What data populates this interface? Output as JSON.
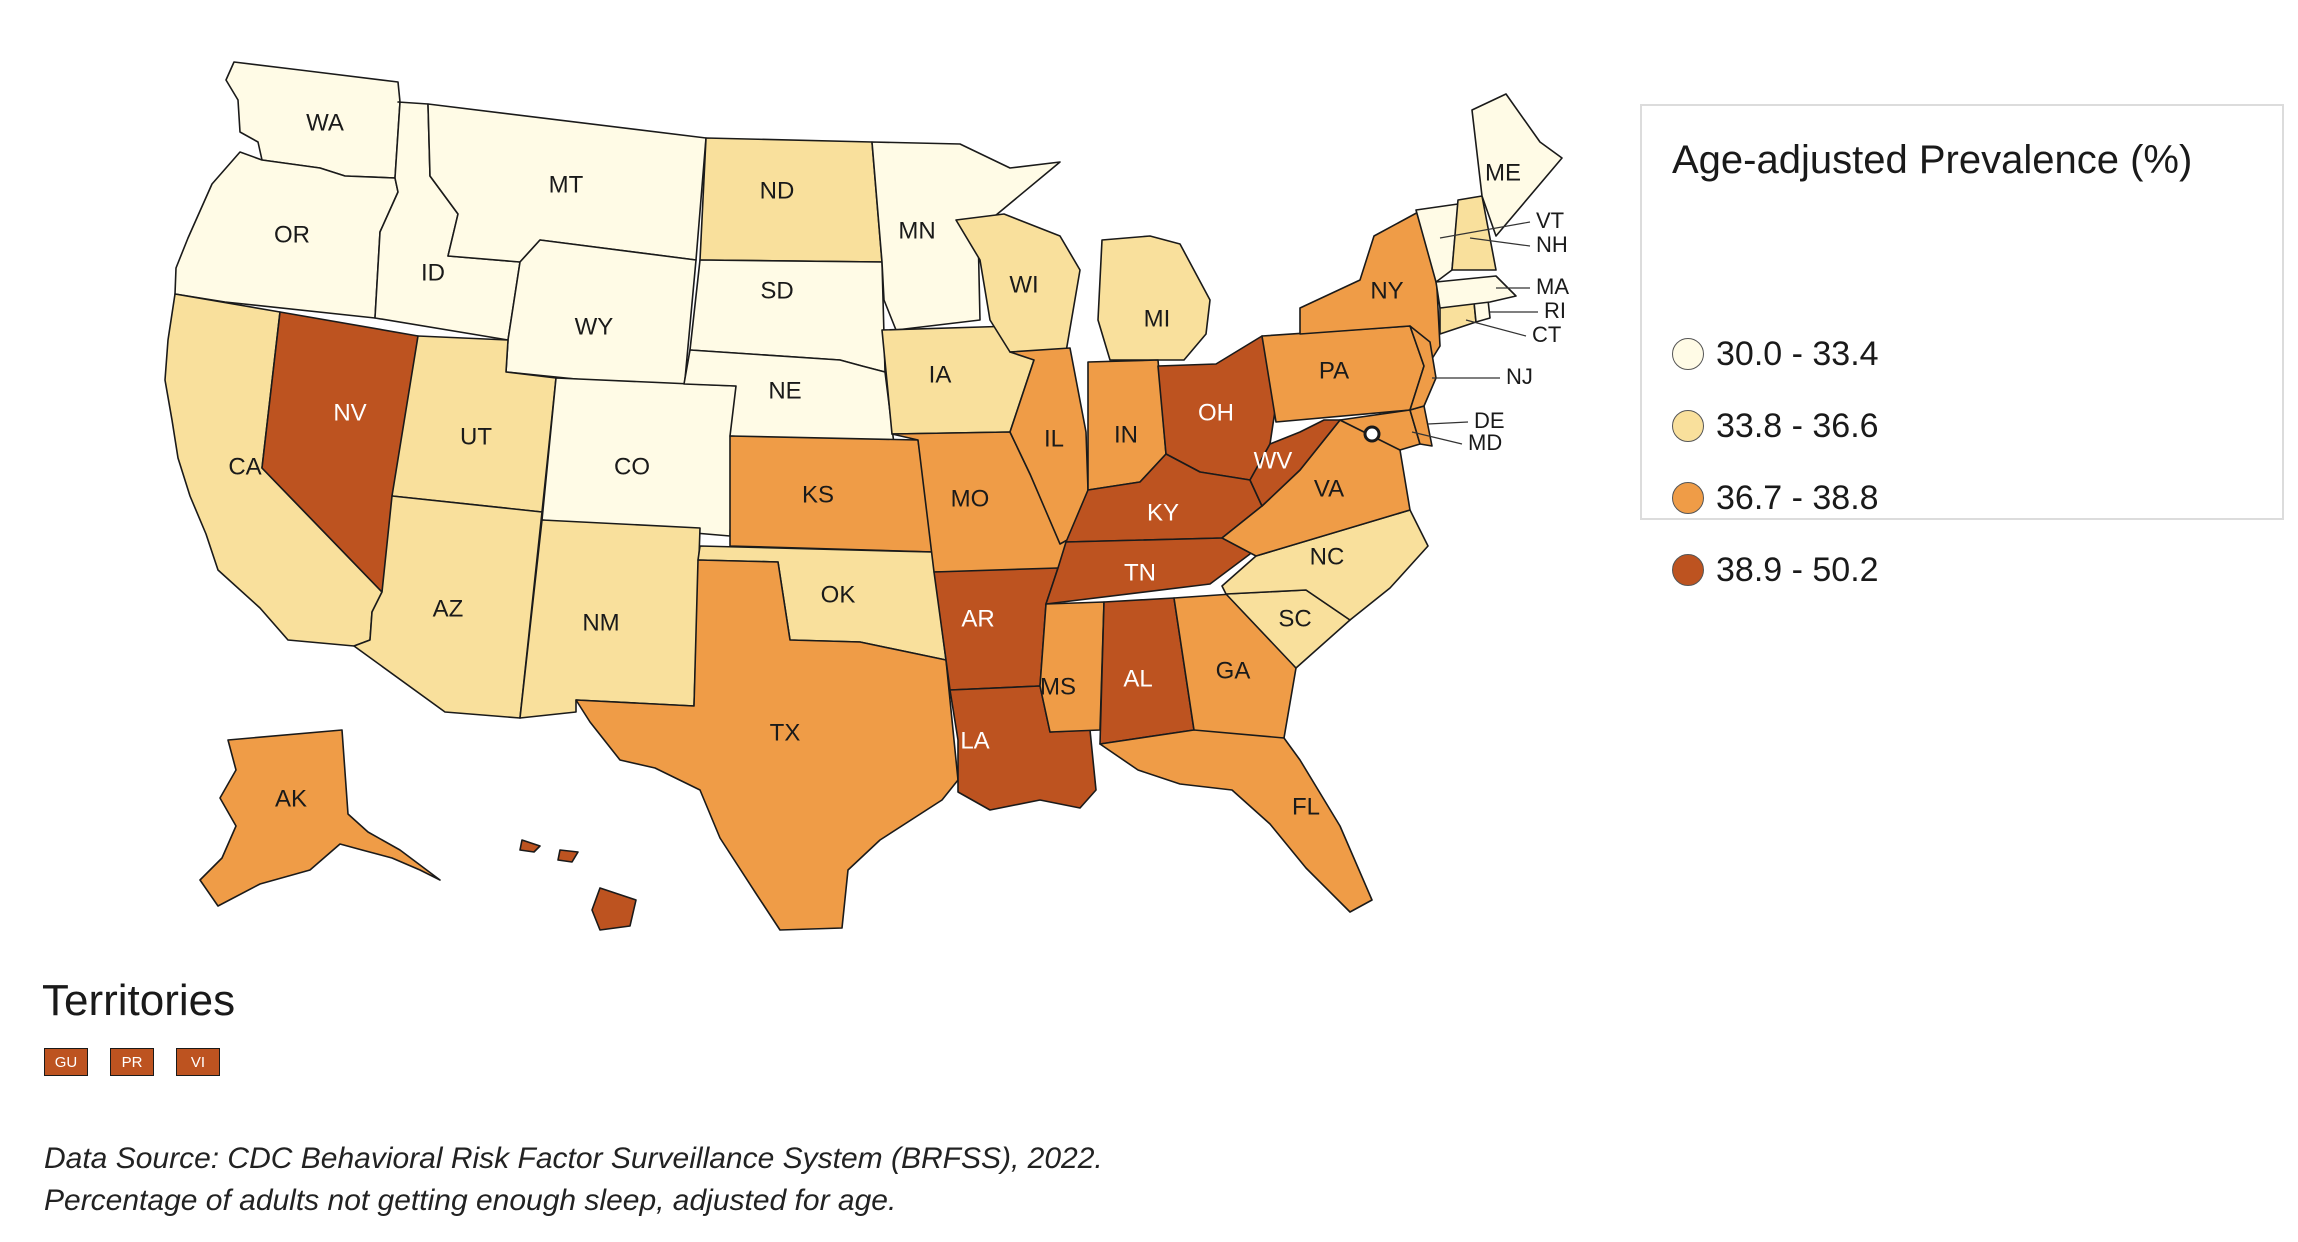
{
  "legend": {
    "title": "Age-adjusted Prevalence (%)",
    "items": [
      {
        "label": "30.0 - 33.4",
        "color": "#fffbe6"
      },
      {
        "label": "33.8 - 36.6",
        "color": "#f9e09c"
      },
      {
        "label": "36.7 - 38.8",
        "color": "#ef9c47"
      },
      {
        "label": "38.9 - 50.2",
        "color": "#bd5320"
      }
    ]
  },
  "classes": {
    "WA": 0,
    "OR": 0,
    "ID": 0,
    "MT": 0,
    "WY": 0,
    "CO": 0,
    "SD": 0,
    "NE": 0,
    "MN": 0,
    "ME": 0,
    "VT": 0,
    "MA": 0,
    "RI": 0,
    "CA": 1,
    "UT": 1,
    "AZ": 1,
    "NM": 1,
    "ND": 1,
    "WI": 1,
    "IA": 1,
    "MI": 1,
    "OK": 1,
    "NC": 1,
    "SC": 1,
    "NH": 1,
    "CT": 1,
    "TX": 2,
    "KS": 2,
    "MO": 2,
    "IL": 2,
    "IN": 2,
    "MS": 2,
    "GA": 2,
    "FL": 2,
    "VA": 2,
    "PA": 2,
    "NY": 2,
    "NJ": 2,
    "DE": 2,
    "MD": 2,
    "AK": 2,
    "NV": 3,
    "AR": 3,
    "LA": 3,
    "AL": 3,
    "TN": 3,
    "KY": 3,
    "OH": 3,
    "WV": 3,
    "HI": 3
  },
  "territories": {
    "title": "Territories",
    "items": [
      {
        "label": "GU",
        "class": 3
      },
      {
        "label": "PR",
        "class": 3
      },
      {
        "label": "VI",
        "class": 3
      }
    ]
  },
  "footnotes": [
    "Data Source: CDC Behavioral Risk Factor Surveillance System (BRFSS), 2022.",
    "Percentage of adults not getting enough sleep, adjusted for age."
  ]
}
